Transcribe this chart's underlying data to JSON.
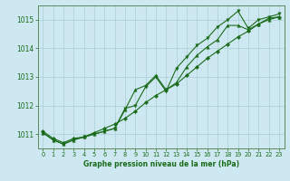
{
  "x": [
    0,
    1,
    2,
    3,
    4,
    5,
    6,
    7,
    8,
    9,
    10,
    11,
    12,
    13,
    14,
    15,
    16,
    17,
    18,
    19,
    20,
    21,
    22,
    23
  ],
  "series1": [
    1011.1,
    1010.85,
    1010.7,
    1010.85,
    1010.9,
    1011.05,
    1011.2,
    1011.35,
    1011.55,
    1011.8,
    1012.1,
    1012.35,
    1012.55,
    1012.75,
    1013.05,
    1013.35,
    1013.65,
    1013.9,
    1014.15,
    1014.4,
    1014.6,
    1014.85,
    1015.05,
    1015.1
  ],
  "series2": [
    1011.05,
    1010.8,
    1010.65,
    1010.8,
    1010.9,
    1011.0,
    1011.1,
    1011.2,
    1011.85,
    1012.55,
    1012.7,
    1013.05,
    1012.55,
    1012.8,
    1013.35,
    1013.75,
    1014.05,
    1014.3,
    1014.8,
    1014.8,
    1014.65,
    1014.85,
    1015.0,
    1015.1
  ],
  "series3": [
    1011.05,
    1010.8,
    1010.65,
    1010.8,
    1010.9,
    1011.0,
    1011.1,
    1011.2,
    1011.9,
    1012.0,
    1012.65,
    1013.0,
    1012.5,
    1013.3,
    1013.7,
    1014.1,
    1014.35,
    1014.75,
    1015.0,
    1015.3,
    1014.7,
    1015.0,
    1015.1,
    1015.2
  ],
  "ylim": [
    1010.5,
    1015.5
  ],
  "xlim_min": -0.5,
  "xlim_max": 23.5,
  "yticks": [
    1011,
    1012,
    1013,
    1014,
    1015
  ],
  "xticks": [
    0,
    1,
    2,
    3,
    4,
    5,
    6,
    7,
    8,
    9,
    10,
    11,
    12,
    13,
    14,
    15,
    16,
    17,
    18,
    19,
    20,
    21,
    22,
    23
  ],
  "line_color": "#1a6b1a",
  "bg_color": "#cde8f0",
  "grid_color": "#a8cdd6",
  "xlabel": "Graphe pression niveau de la mer (hPa)",
  "xlabel_color": "#1a6b1a",
  "tick_color": "#1a6b1a",
  "axis_color": "#5a8a5a"
}
